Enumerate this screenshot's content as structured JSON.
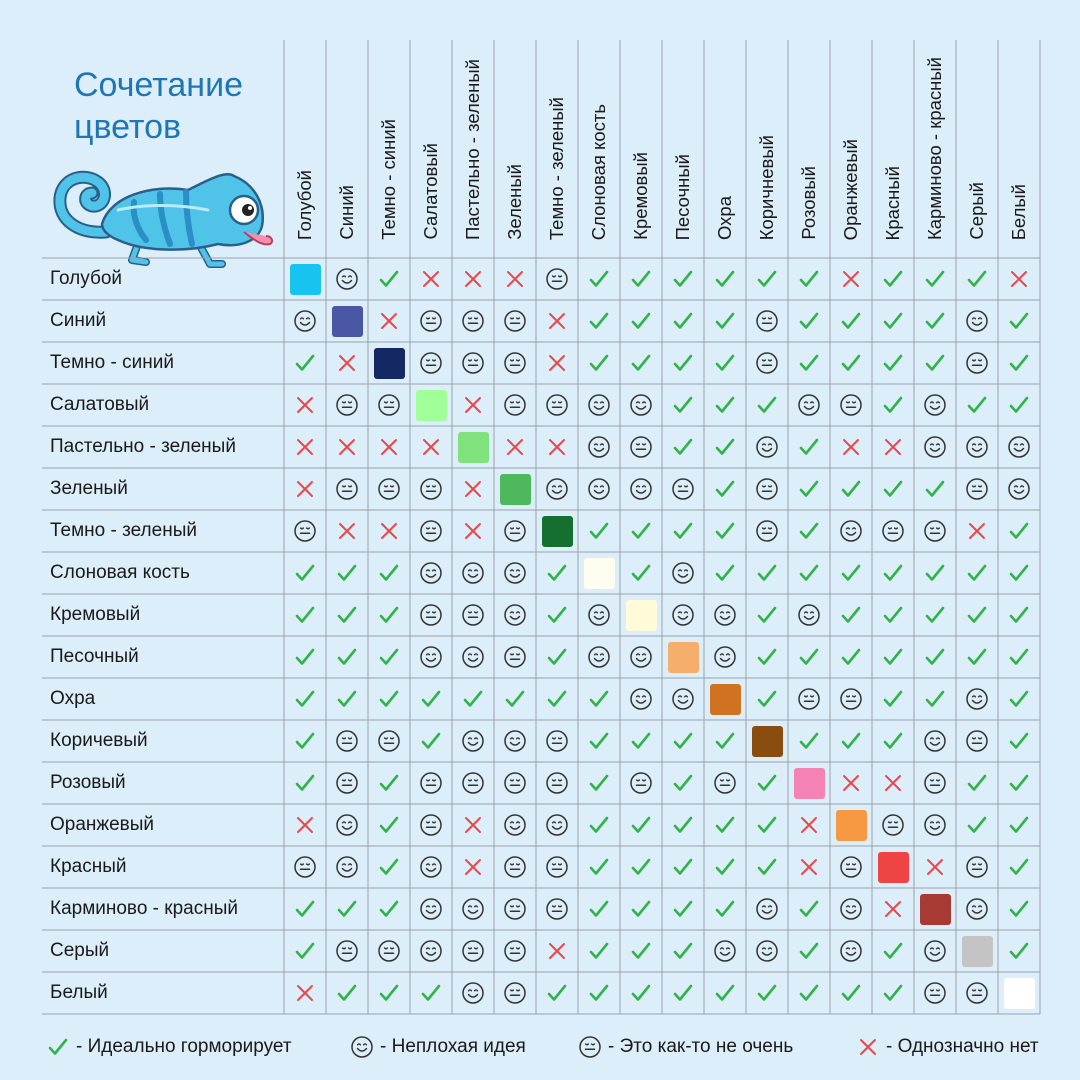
{
  "title": "Сочетание цветов",
  "colors": [
    {
      "name": "Голубой",
      "hex": "#19c3f0"
    },
    {
      "name": "Синий",
      "hex": "#4a57a5"
    },
    {
      "name": "Темно - синий",
      "hex": "#142964"
    },
    {
      "name": "Салатовый",
      "hex": "#a0ff98"
    },
    {
      "name": "Пастельно - зеленый",
      "hex": "#7fe27c"
    },
    {
      "name": "Зеленый",
      "hex": "#4db85c"
    },
    {
      "name": "Темно - зеленый",
      "hex": "#156f2e"
    },
    {
      "name": "Слоновая кость",
      "hex": "#fffdf0"
    },
    {
      "name": "Кремовый",
      "hex": "#fffbd8"
    },
    {
      "name": "Песочный",
      "hex": "#f6ae6c"
    },
    {
      "name": "Охра",
      "hex": "#cf7320"
    },
    {
      "name": "Коричневый",
      "hex": "#8a4d10"
    },
    {
      "name": "Розовый",
      "hex": "#f582b4"
    },
    {
      "name": "Оранжевый",
      "hex": "#f79842"
    },
    {
      "name": "Красный",
      "hex": "#ef4444"
    },
    {
      "name": "Карминово - красный",
      "hex": "#a83a34"
    },
    {
      "name": "Серый",
      "hex": "#c4c4c4"
    },
    {
      "name": "Белый",
      "hex": "#ffffff"
    }
  ],
  "row_labels": [
    "Голубой",
    "Синий",
    "Темно - синий",
    "Салатовый",
    "Пастельно - зеленый",
    "Зеленый",
    "Темно - зеленый",
    "Слоновая кость",
    "Кремовый",
    "Песочный",
    "Охра",
    "Коричевый",
    "Розовый",
    "Оранжевый",
    "Красный",
    "Карминово - красный",
    "Серый",
    "Белый"
  ],
  "matrix": [
    [
      "S",
      "G",
      "Y",
      "X",
      "X",
      "X",
      "M",
      "Y",
      "Y",
      "Y",
      "Y",
      "Y",
      "Y",
      "X",
      "Y",
      "Y",
      "Y",
      "X"
    ],
    [
      "G",
      "S",
      "X",
      "M",
      "M",
      "M",
      "X",
      "Y",
      "Y",
      "Y",
      "Y",
      "M",
      "Y",
      "Y",
      "Y",
      "Y",
      "G",
      "Y"
    ],
    [
      "Y",
      "X",
      "S",
      "M",
      "M",
      "M",
      "X",
      "Y",
      "Y",
      "Y",
      "Y",
      "M",
      "Y",
      "Y",
      "Y",
      "Y",
      "M",
      "Y"
    ],
    [
      "X",
      "M",
      "M",
      "S",
      "X",
      "M",
      "M",
      "G",
      "G",
      "Y",
      "Y",
      "Y",
      "G",
      "M",
      "Y",
      "G",
      "Y",
      "Y"
    ],
    [
      "X",
      "X",
      "X",
      "X",
      "S",
      "X",
      "X",
      "G",
      "M",
      "Y",
      "Y",
      "G",
      "Y",
      "X",
      "X",
      "G",
      "G",
      "G"
    ],
    [
      "X",
      "M",
      "M",
      "M",
      "X",
      "S",
      "G",
      "G",
      "G",
      "M",
      "Y",
      "M",
      "Y",
      "Y",
      "Y",
      "Y",
      "M",
      "G"
    ],
    [
      "M",
      "X",
      "X",
      "M",
      "X",
      "M",
      "S",
      "Y",
      "Y",
      "Y",
      "Y",
      "M",
      "Y",
      "G",
      "M",
      "M",
      "X",
      "Y"
    ],
    [
      "Y",
      "Y",
      "Y",
      "G",
      "G",
      "G",
      "Y",
      "S",
      "Y",
      "G",
      "Y",
      "Y",
      "Y",
      "Y",
      "Y",
      "Y",
      "Y",
      "Y"
    ],
    [
      "Y",
      "Y",
      "Y",
      "M",
      "M",
      "G",
      "Y",
      "G",
      "S",
      "G",
      "G",
      "Y",
      "G",
      "Y",
      "Y",
      "Y",
      "Y",
      "Y"
    ],
    [
      "Y",
      "Y",
      "Y",
      "G",
      "G",
      "M",
      "Y",
      "G",
      "G",
      "S",
      "G",
      "Y",
      "Y",
      "Y",
      "Y",
      "Y",
      "Y",
      "Y"
    ],
    [
      "Y",
      "Y",
      "Y",
      "Y",
      "Y",
      "Y",
      "Y",
      "Y",
      "G",
      "G",
      "S",
      "Y",
      "M",
      "M",
      "Y",
      "Y",
      "G",
      "Y"
    ],
    [
      "Y",
      "M",
      "M",
      "Y",
      "G",
      "G",
      "M",
      "Y",
      "Y",
      "Y",
      "Y",
      "S",
      "Y",
      "Y",
      "Y",
      "G",
      "M",
      "Y"
    ],
    [
      "Y",
      "M",
      "Y",
      "M",
      "M",
      "M",
      "M",
      "Y",
      "M",
      "Y",
      "M",
      "Y",
      "S",
      "X",
      "X",
      "M",
      "Y",
      "Y"
    ],
    [
      "X",
      "G",
      "Y",
      "M",
      "X",
      "G",
      "G",
      "Y",
      "Y",
      "Y",
      "Y",
      "Y",
      "X",
      "S",
      "M",
      "G",
      "Y",
      "Y"
    ],
    [
      "M",
      "G",
      "Y",
      "G",
      "X",
      "M",
      "M",
      "Y",
      "Y",
      "Y",
      "Y",
      "Y",
      "X",
      "M",
      "S",
      "X",
      "M",
      "Y"
    ],
    [
      "Y",
      "Y",
      "Y",
      "G",
      "G",
      "M",
      "M",
      "Y",
      "Y",
      "Y",
      "Y",
      "G",
      "Y",
      "G",
      "X",
      "S",
      "G",
      "Y"
    ],
    [
      "Y",
      "M",
      "M",
      "G",
      "M",
      "M",
      "X",
      "Y",
      "Y",
      "Y",
      "G",
      "G",
      "Y",
      "G",
      "Y",
      "G",
      "S",
      "Y"
    ],
    [
      "X",
      "Y",
      "Y",
      "Y",
      "G",
      "M",
      "Y",
      "Y",
      "Y",
      "Y",
      "Y",
      "Y",
      "Y",
      "Y",
      "Y",
      "M",
      "M",
      "S"
    ]
  ],
  "legend": [
    {
      "symbol": "Y",
      "label": "- Идеально горморирует"
    },
    {
      "symbol": "G",
      "label": "- Неплохая идея"
    },
    {
      "symbol": "M",
      "label": "- Это как-то не очень"
    },
    {
      "symbol": "X",
      "label": "- Однозначно нет"
    }
  ],
  "symbol_colors": {
    "Y": "#2fb34a",
    "G": "#333333",
    "M": "#333333",
    "X": "#e8474c"
  }
}
